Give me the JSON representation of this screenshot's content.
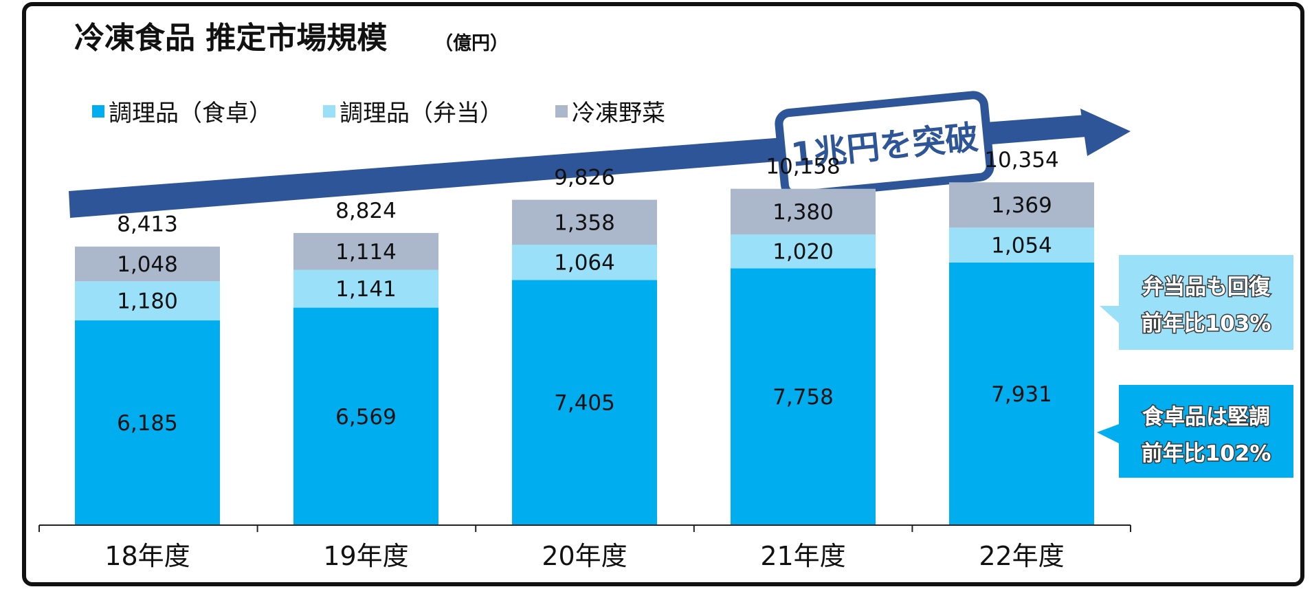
{
  "colors": {
    "food_table": "#00AEEF",
    "bento": "#99E0F8",
    "vegetables": "#ABB7CA",
    "arrow": "#2E5597",
    "frame": "#111111",
    "text": "#111111"
  },
  "chart_data": {
    "type": "bar",
    "stacked": true,
    "title": "冷凍食品 推定市場規模",
    "unit": "（億円）",
    "categories": [
      "18年度",
      "19年度",
      "20年度",
      "21年度",
      "22年度"
    ],
    "series": [
      {
        "name": "調理品（食卓）",
        "color_key": "food_table",
        "values": [
          6185,
          6569,
          7405,
          7758,
          7931
        ],
        "labels": [
          "6,185",
          "6,569",
          "7,405",
          "7,758",
          "7,931"
        ]
      },
      {
        "name": "調理品（弁当）",
        "color_key": "bento",
        "values": [
          1180,
          1141,
          1064,
          1020,
          1054
        ],
        "labels": [
          "1,180",
          "1,141",
          "1,064",
          "1,020",
          "1,054"
        ]
      },
      {
        "name": "冷凍野菜",
        "color_key": "vegetables",
        "values": [
          1048,
          1114,
          1358,
          1380,
          1369
        ],
        "labels": [
          "1,048",
          "1,114",
          "1,358",
          "1,380",
          "1,369"
        ]
      }
    ],
    "totals": [
      8413,
      8824,
      9826,
      10158,
      10354
    ],
    "total_labels": [
      "8,413",
      "8,824",
      "9,826",
      "10,158",
      "10,354"
    ],
    "ylim": [
      0,
      14000
    ],
    "legend_position": "top-left",
    "arrow_label": "1兆円を突破",
    "callouts": [
      {
        "line1": "弁当品も回復",
        "line2": "前年比103%",
        "color_key": "bento"
      },
      {
        "line1": "食卓品は堅調",
        "line2": "前年比102%",
        "color_key": "food_table"
      }
    ]
  }
}
